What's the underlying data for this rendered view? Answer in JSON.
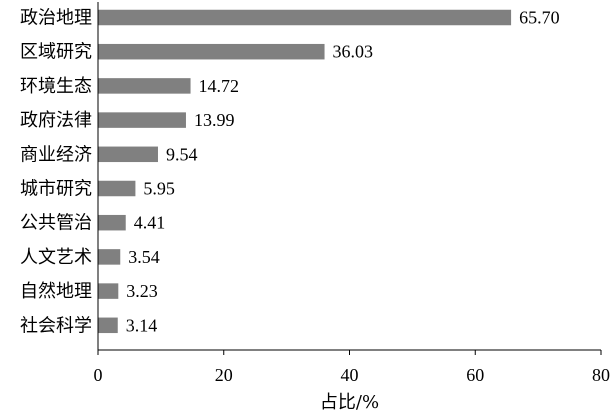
{
  "chart_data": {
    "type": "bar",
    "orientation": "horizontal",
    "categories": [
      "政治地理",
      "区域研究",
      "环境生态",
      "政府法律",
      "商业经济",
      "城市研究",
      "公共管治",
      "人文艺术",
      "自然地理",
      "社会科学"
    ],
    "values": [
      65.7,
      36.03,
      14.72,
      13.99,
      9.54,
      5.95,
      4.41,
      3.54,
      3.23,
      3.14
    ],
    "value_labels": [
      "65.70",
      "36.03",
      "14.72",
      "13.99",
      "9.54",
      "5.95",
      "4.41",
      "3.54",
      "3.23",
      "3.14"
    ],
    "xlabel": "占比/%",
    "xlim": [
      0,
      80
    ],
    "xticks": [
      0,
      20,
      40,
      60,
      80
    ],
    "grid": false,
    "bar_color": "#808080"
  }
}
